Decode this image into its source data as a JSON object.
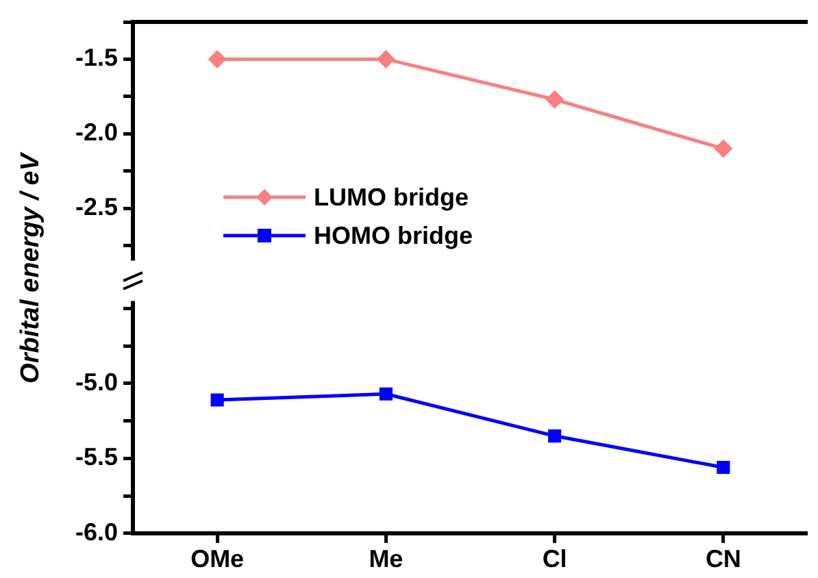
{
  "chart_data": [
    {
      "type": "line",
      "ylabel": "Orbital energy  / eV",
      "categories": [
        null,
        null,
        null,
        null
      ],
      "legend": "left",
      "marker": "diamond",
      "tick_labels": "y",
      "series": [
        {
          "name": "LUMO bridge",
          "color": "#f88080",
          "values": [
            -1.5,
            -1.5,
            -1.77,
            -2.1
          ]
        }
      ],
      "ylim": [
        -2.85,
        -1.25
      ],
      "yticks": [
        {
          "value": -1.25,
          "label": null
        },
        -1.5,
        {
          "value": -1.75,
          "label": null
        },
        {
          "value": -2.0,
          "label": "-2.0"
        },
        {
          "value": -2.25,
          "label": null
        },
        -2.5,
        {
          "value": -2.75,
          "label": null
        }
      ]
    },
    {
      "type": "line",
      "categories": [
        "OMe",
        "Me",
        "Cl",
        "CN"
      ],
      "marker": "square",
      "series": [
        {
          "name": "HOMO bridge",
          "color": "#0000ff",
          "values": [
            -5.11,
            -5.07,
            -5.35,
            -5.56
          ]
        }
      ],
      "ylim": [
        -6.0,
        -4.45
      ],
      "yticks": [
        {
          "value": -4.5,
          "label": null
        },
        {
          "value": -4.75,
          "label": null
        },
        {
          "value": -5.0,
          "label": "-5.0"
        },
        {
          "value": -5.25,
          "label": null
        },
        -5.5,
        {
          "value": -5.75,
          "label": null
        },
        {
          "value": -6.0,
          "label": "-6.0"
        }
      ]
    }
  ]
}
